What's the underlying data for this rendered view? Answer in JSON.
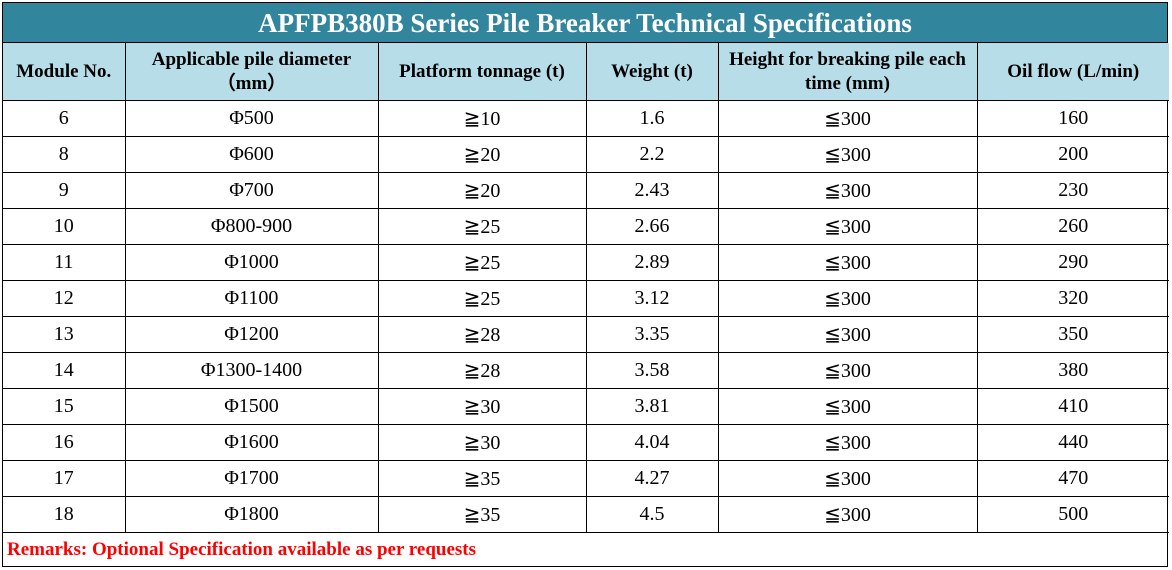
{
  "title": "APFPB380B Series Pile Breaker Technical Specifications",
  "columns": [
    "Module No.",
    "Applicable pile diameter （mm）",
    "Platform tonnage (t)",
    "Weight (t)",
    "Height for breaking pile each time (mm)",
    "Oil flow (L/min)"
  ],
  "rows": [
    [
      "6",
      "Φ500",
      "≧10",
      "1.6",
      "≦300",
      "160"
    ],
    [
      "8",
      "Φ600",
      "≧20",
      "2.2",
      "≦300",
      "200"
    ],
    [
      "9",
      "Φ700",
      "≧20",
      "2.43",
      "≦300",
      "230"
    ],
    [
      "10",
      "Φ800-900",
      "≧25",
      "2.66",
      "≦300",
      "260"
    ],
    [
      "11",
      "Φ1000",
      "≧25",
      "2.89",
      "≦300",
      "290"
    ],
    [
      "12",
      "Φ1100",
      "≧25",
      "3.12",
      "≦300",
      "320"
    ],
    [
      "13",
      "Φ1200",
      "≧28",
      "3.35",
      "≦300",
      "350"
    ],
    [
      "14",
      "Φ1300-1400",
      "≧28",
      "3.58",
      "≦300",
      "380"
    ],
    [
      "15",
      "Φ1500",
      "≧30",
      "3.81",
      "≦300",
      "410"
    ],
    [
      "16",
      "Φ1600",
      "≧30",
      "4.04",
      "≦300",
      "440"
    ],
    [
      "17",
      "Φ1700",
      "≧35",
      "4.27",
      "≦300",
      "470"
    ],
    [
      "18",
      "Φ1800",
      "≧35",
      "4.5",
      "≦300",
      "500"
    ]
  ],
  "remarks": "Remarks: Optional Specification available as per requests",
  "colors": {
    "title_bg": "#31859c",
    "header_bg": "#b7dde8",
    "remarks_text": "#ff0000"
  }
}
